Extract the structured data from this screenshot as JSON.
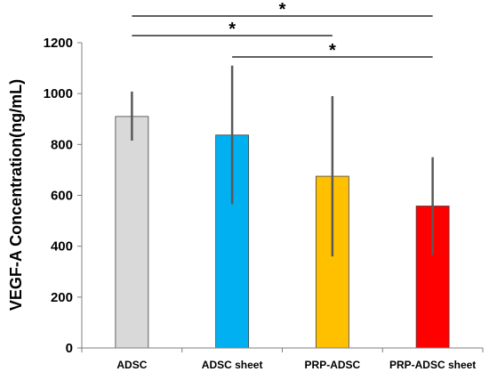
{
  "chart_data": {
    "type": "bar",
    "categories": [
      "ADSC",
      "ADSC sheet",
      "PRP-ADSC",
      "PRP-ADSC sheet"
    ],
    "values": [
      910,
      837,
      675,
      558
    ],
    "errors": [
      {
        "low": 815,
        "high": 1008
      },
      {
        "low": 565,
        "high": 1110
      },
      {
        "low": 360,
        "high": 990
      },
      {
        "low": 365,
        "high": 750
      }
    ],
    "colors": [
      "#D9D9D9",
      "#00B0F0",
      "#FFC000",
      "#FF0000"
    ],
    "ylabel": "VEGF-A Concentration(ng/mL)",
    "ylim": [
      0,
      1200
    ],
    "yticks": [
      0,
      200,
      400,
      600,
      800,
      1000,
      1200
    ],
    "grid": false,
    "significance": [
      {
        "from": 0,
        "to": 3,
        "label": "*"
      },
      {
        "from": 0,
        "to": 2,
        "label": "*"
      },
      {
        "from": 1,
        "to": 3,
        "label": "*"
      }
    ]
  }
}
